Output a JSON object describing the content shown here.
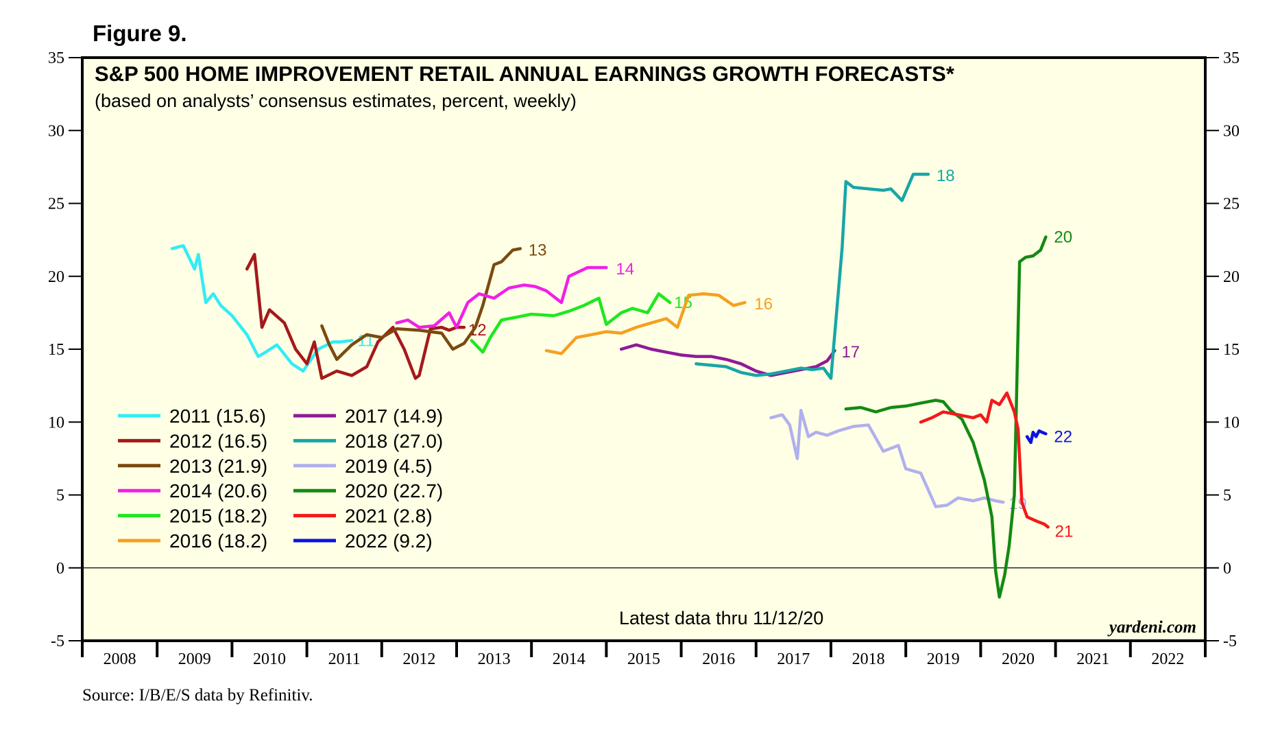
{
  "figure_label": "Figure 9.",
  "source": "Source: I/B/E/S data by Refinitiv.",
  "chart_data": {
    "type": "line",
    "title": "S&P 500 HOME IMPROVEMENT RETAIL ANNUAL EARNINGS GROWTH FORECASTS*",
    "subtitle": "(based on analysts’ consensus estimates, percent, weekly)",
    "note": "Latest data thru 11/12/20",
    "credit": "yardeni.com",
    "ylim": [
      -5,
      35
    ],
    "yticks": [
      -5,
      0,
      5,
      10,
      15,
      20,
      25,
      30,
      35
    ],
    "ytick_labels": [
      "-5",
      "0",
      "5",
      "10",
      "15",
      "20",
      "25",
      "30",
      "35"
    ],
    "xlim": [
      2008,
      2023
    ],
    "x_labels": [
      "2008",
      "2009",
      "2010",
      "2011",
      "2012",
      "2013",
      "2014",
      "2015",
      "2016",
      "2017",
      "2018",
      "2019",
      "2020",
      "2021",
      "2022"
    ],
    "zero_line": true,
    "legend_position": "bottom-left",
    "series": [
      {
        "name": "2011",
        "legend": "2011 (15.6)",
        "end_label": "11",
        "color": "#33ECF5",
        "x": [
          2009.2,
          2009.35,
          2009.5,
          2009.55,
          2009.65,
          2009.75,
          2009.85,
          2010.0,
          2010.2,
          2010.35,
          2010.45,
          2010.6,
          2010.8,
          2010.95,
          2011.15,
          2011.35,
          2011.45,
          2011.6
        ],
        "y": [
          21.9,
          22.1,
          20.5,
          21.5,
          18.2,
          18.8,
          18.0,
          17.3,
          16.0,
          14.5,
          14.8,
          15.3,
          14.0,
          13.5,
          15.0,
          15.5,
          15.5,
          15.6
        ]
      },
      {
        "name": "2012",
        "legend": "2012 (16.5)",
        "end_label": "12",
        "color": "#A31A1A",
        "x": [
          2010.2,
          2010.3,
          2010.4,
          2010.5,
          2010.7,
          2010.85,
          2011.0,
          2011.1,
          2011.2,
          2011.4,
          2011.6,
          2011.8,
          2011.95,
          2012.15,
          2012.3,
          2012.45,
          2012.5,
          2012.65,
          2012.8,
          2012.9,
          2013.0,
          2013.1
        ],
        "y": [
          20.5,
          21.5,
          16.5,
          17.7,
          16.8,
          15.0,
          14.0,
          15.5,
          13.0,
          13.5,
          13.2,
          13.8,
          15.5,
          16.5,
          15.0,
          13.0,
          13.2,
          16.4,
          16.5,
          16.3,
          16.5,
          16.5
        ]
      },
      {
        "name": "2013",
        "legend": "2013 (21.9)",
        "end_label": "13",
        "color": "#7B4A10",
        "x": [
          2011.2,
          2011.3,
          2011.4,
          2011.6,
          2011.8,
          2012.0,
          2012.2,
          2012.5,
          2012.8,
          2012.95,
          2013.1,
          2013.25,
          2013.35,
          2013.5,
          2013.6,
          2013.75,
          2013.85
        ],
        "y": [
          16.6,
          15.3,
          14.3,
          15.3,
          16.0,
          15.8,
          16.4,
          16.3,
          16.1,
          15.0,
          15.4,
          16.5,
          18.0,
          20.8,
          21.0,
          21.8,
          21.9
        ]
      },
      {
        "name": "2014",
        "legend": "2014 (20.6)",
        "end_label": "14",
        "color": "#F020E8",
        "x": [
          2012.2,
          2012.35,
          2012.5,
          2012.7,
          2012.9,
          2013.0,
          2013.15,
          2013.3,
          2013.5,
          2013.7,
          2013.9,
          2014.05,
          2014.2,
          2014.4,
          2014.5,
          2014.75,
          2015.0
        ],
        "y": [
          16.8,
          17.0,
          16.5,
          16.6,
          17.5,
          16.5,
          18.2,
          18.8,
          18.5,
          19.2,
          19.4,
          19.3,
          19.0,
          18.2,
          20.0,
          20.6,
          20.6
        ]
      },
      {
        "name": "2015",
        "legend": "2015 (18.2)",
        "end_label": "15",
        "color": "#1EE81E",
        "x": [
          2013.2,
          2013.35,
          2013.45,
          2013.6,
          2013.8,
          2014.0,
          2014.3,
          2014.5,
          2014.7,
          2014.9,
          2015.0,
          2015.2,
          2015.35,
          2015.55,
          2015.7,
          2015.85
        ],
        "y": [
          15.6,
          14.8,
          15.8,
          17.0,
          17.2,
          17.4,
          17.3,
          17.6,
          18.0,
          18.5,
          16.7,
          17.5,
          17.8,
          17.5,
          18.8,
          18.2
        ]
      },
      {
        "name": "2016",
        "legend": "2016 (18.2)",
        "end_label": "16",
        "color": "#F5A020",
        "x": [
          2014.2,
          2014.4,
          2014.6,
          2014.8,
          2015.0,
          2015.2,
          2015.4,
          2015.6,
          2015.8,
          2015.95,
          2016.1,
          2016.3,
          2016.5,
          2016.7,
          2016.85
        ],
        "y": [
          14.9,
          14.7,
          15.8,
          16.0,
          16.2,
          16.1,
          16.5,
          16.8,
          17.1,
          16.5,
          18.7,
          18.8,
          18.7,
          18.0,
          18.2
        ]
      },
      {
        "name": "2017",
        "legend": "2017 (14.9)",
        "end_label": "17",
        "color": "#8E1A96",
        "x": [
          2015.2,
          2015.4,
          2015.6,
          2015.8,
          2016.0,
          2016.2,
          2016.4,
          2016.6,
          2016.8,
          2017.0,
          2017.2,
          2017.4,
          2017.6,
          2017.8,
          2017.95,
          2018.05
        ],
        "y": [
          15.0,
          15.3,
          15.0,
          14.8,
          14.6,
          14.5,
          14.5,
          14.3,
          14.0,
          13.5,
          13.2,
          13.4,
          13.6,
          13.8,
          14.2,
          14.9
        ]
      },
      {
        "name": "2018",
        "legend": "2018 (27.0)",
        "end_label": "18",
        "color": "#17A6A6",
        "x": [
          2016.2,
          2016.4,
          2016.6,
          2016.8,
          2017.0,
          2017.2,
          2017.4,
          2017.6,
          2017.75,
          2017.9,
          2018.0,
          2018.15,
          2018.2,
          2018.3,
          2018.5,
          2018.7,
          2018.8,
          2018.95,
          2019.1,
          2019.3
        ],
        "y": [
          14.0,
          13.9,
          13.8,
          13.4,
          13.2,
          13.3,
          13.5,
          13.7,
          13.6,
          13.7,
          13.0,
          22.0,
          26.5,
          26.1,
          26.0,
          25.9,
          26.0,
          25.2,
          27.0,
          27.0
        ]
      },
      {
        "name": "2019",
        "legend": "2019 (4.5)",
        "end_label": "19",
        "color": "#B0B0EE",
        "x": [
          2017.2,
          2017.35,
          2017.45,
          2017.55,
          2017.6,
          2017.7,
          2017.8,
          2017.95,
          2018.1,
          2018.3,
          2018.5,
          2018.7,
          2018.9,
          2019.0,
          2019.2,
          2019.4,
          2019.55,
          2019.7,
          2019.8,
          2019.9,
          2020.05,
          2020.2,
          2020.3
        ],
        "y": [
          10.3,
          10.5,
          9.8,
          7.5,
          10.8,
          9.0,
          9.3,
          9.1,
          9.4,
          9.7,
          9.8,
          8.0,
          8.4,
          6.8,
          6.5,
          4.2,
          4.3,
          4.8,
          4.7,
          4.6,
          4.8,
          4.6,
          4.5
        ]
      },
      {
        "name": "2020",
        "legend": "2020 (22.7)",
        "end_label": "20",
        "color": "#138A13",
        "x": [
          2018.2,
          2018.4,
          2018.6,
          2018.8,
          2019.0,
          2019.2,
          2019.4,
          2019.5,
          2019.6,
          2019.75,
          2019.9,
          2020.05,
          2020.15,
          2020.2,
          2020.25,
          2020.32,
          2020.38,
          2020.45,
          2020.52,
          2020.6,
          2020.7,
          2020.8,
          2020.87
        ],
        "y": [
          10.9,
          11.0,
          10.7,
          11.0,
          11.1,
          11.3,
          11.5,
          11.4,
          10.8,
          10.2,
          8.6,
          6.0,
          3.5,
          -0.2,
          -2.0,
          -0.5,
          1.5,
          5.0,
          21.0,
          21.3,
          21.4,
          21.8,
          22.7
        ]
      },
      {
        "name": "2021",
        "legend": "2021 (2.8)",
        "end_label": "21",
        "color": "#F21A1A",
        "x": [
          2019.2,
          2019.35,
          2019.5,
          2019.7,
          2019.9,
          2020.0,
          2020.08,
          2020.15,
          2020.25,
          2020.35,
          2020.45,
          2020.5,
          2020.55,
          2020.62,
          2020.75,
          2020.85,
          2020.9
        ],
        "y": [
          10.0,
          10.3,
          10.7,
          10.5,
          10.3,
          10.5,
          10.0,
          11.5,
          11.2,
          12.0,
          10.7,
          9.5,
          4.5,
          3.5,
          3.2,
          3.0,
          2.8
        ]
      },
      {
        "name": "2022",
        "legend": "2022 (9.2)",
        "end_label": "22",
        "color": "#0A14E0",
        "x": [
          2020.62,
          2020.67,
          2020.7,
          2020.74,
          2020.78,
          2020.82,
          2020.87
        ],
        "y": [
          9.0,
          8.6,
          9.3,
          9.0,
          9.4,
          9.3,
          9.2
        ]
      }
    ]
  }
}
